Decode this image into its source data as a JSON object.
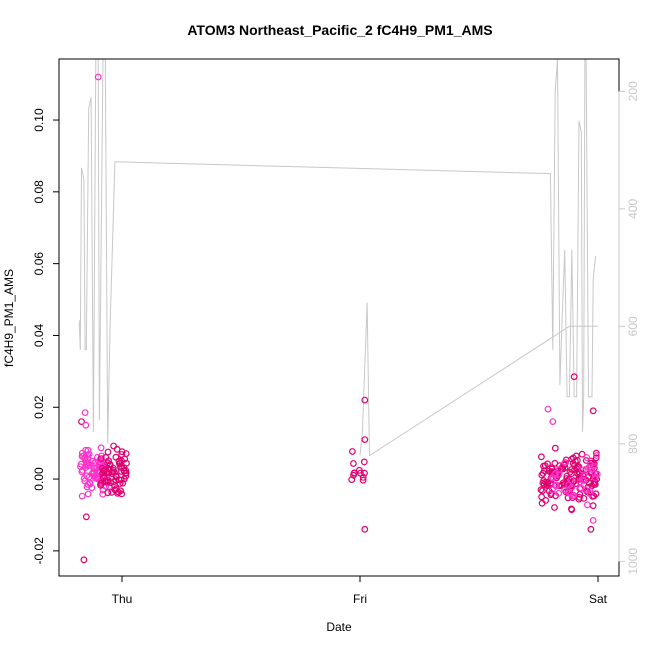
{
  "chart_data": {
    "type": "scatter",
    "title": "ATOM3 Northeast_Pacific_2 fC4H9_PM1_AMS",
    "xlabel": "Date",
    "ylabel": "fC4H9_PM1_AMS",
    "x_ticks": [
      "Thu",
      "Fri",
      "Sat"
    ],
    "y_ticks": [
      "-0.02",
      "0.00",
      "0.02",
      "0.04",
      "0.06",
      "0.08",
      "0.10"
    ],
    "y2_ticks": [
      "200",
      "400",
      "600",
      "800",
      "1000"
    ],
    "ylim": [
      -0.027,
      0.117
    ],
    "y2lim": [
      1025,
      145
    ],
    "colors": {
      "magenta": "#ff33cc",
      "crimson": "#e0006f",
      "line": "#c8c8c8"
    },
    "scatter_groups": [
      {
        "x_range": [
          -0.18,
          -0.05
        ],
        "y_range": [
          -0.007,
          0.011
        ],
        "n": 80,
        "color": "magenta"
      },
      {
        "x_range": [
          -0.09,
          0.02
        ],
        "y_range": [
          -0.007,
          0.011
        ],
        "n": 70,
        "color": "crimson"
      },
      {
        "x_range": [
          0.96,
          1.02
        ],
        "y_range": [
          -0.009,
          0.011
        ],
        "n": 12,
        "color": "crimson"
      },
      {
        "x_range": [
          1.76,
          2.0
        ],
        "y_range": [
          -0.01,
          0.011
        ],
        "n": 140,
        "color": "crimson"
      },
      {
        "x_range": [
          1.8,
          2.0
        ],
        "y_range": [
          -0.009,
          0.01
        ],
        "n": 40,
        "color": "magenta"
      }
    ],
    "outliers": [
      {
        "x": -0.1,
        "y": 0.112,
        "color": "magenta"
      },
      {
        "x": -0.16,
        "y": -0.0225,
        "color": "crimson"
      },
      {
        "x": -0.15,
        "y": -0.0105,
        "color": "crimson"
      },
      {
        "x": -0.17,
        "y": 0.016,
        "color": "crimson"
      },
      {
        "x": -0.155,
        "y": 0.0185,
        "color": "magenta"
      },
      {
        "x": -0.152,
        "y": 0.015,
        "color": "magenta"
      },
      {
        "x": 1.02,
        "y": 0.022,
        "color": "crimson"
      },
      {
        "x": 1.02,
        "y": -0.014,
        "color": "crimson"
      },
      {
        "x": 1.02,
        "y": 0.011,
        "color": "crimson"
      },
      {
        "x": 1.9,
        "y": 0.0285,
        "color": "crimson"
      },
      {
        "x": 1.79,
        "y": 0.0195,
        "color": "magenta"
      },
      {
        "x": 1.81,
        "y": 0.016,
        "color": "magenta"
      },
      {
        "x": 1.98,
        "y": 0.019,
        "color": "crimson"
      },
      {
        "x": 1.98,
        "y": -0.0115,
        "color": "magenta"
      },
      {
        "x": 1.97,
        "y": -0.014,
        "color": "crimson"
      }
    ],
    "altitude_line": [
      [
        -0.18,
        590
      ],
      [
        -0.175,
        640
      ],
      [
        -0.17,
        330
      ],
      [
        -0.16,
        350
      ],
      [
        -0.155,
        640
      ],
      [
        -0.15,
        640
      ],
      [
        -0.14,
        230
      ],
      [
        -0.13,
        210
      ],
      [
        -0.12,
        780
      ],
      [
        -0.11,
        145
      ],
      [
        -0.1,
        145
      ],
      [
        -0.095,
        760
      ],
      [
        -0.08,
        145
      ],
      [
        -0.07,
        145
      ],
      [
        -0.06,
        800
      ],
      [
        -0.05,
        600
      ],
      [
        -0.03,
        320
      ],
      [
        1.8,
        340
      ],
      [
        1.81,
        640
      ],
      [
        1.82,
        200
      ],
      [
        1.83,
        145
      ],
      [
        1.84,
        700
      ],
      [
        1.85,
        580
      ],
      [
        1.86,
        470
      ],
      [
        1.87,
        720
      ],
      [
        1.88,
        720
      ],
      [
        1.89,
        470
      ],
      [
        1.9,
        720
      ],
      [
        1.91,
        720
      ],
      [
        1.92,
        250
      ],
      [
        1.93,
        270
      ],
      [
        1.935,
        780
      ],
      [
        1.94,
        720
      ],
      [
        1.945,
        145
      ],
      [
        1.95,
        145
      ],
      [
        1.96,
        720
      ],
      [
        1.97,
        720
      ],
      [
        1.975,
        720
      ],
      [
        1.98,
        520
      ],
      [
        1.99,
        480
      ]
    ],
    "altitude_tail": [
      [
        1.0,
        820
      ],
      [
        1.01,
        780
      ],
      [
        1.03,
        560
      ],
      [
        1.04,
        820
      ],
      [
        1.88,
        600
      ],
      [
        2.0,
        600
      ]
    ]
  }
}
